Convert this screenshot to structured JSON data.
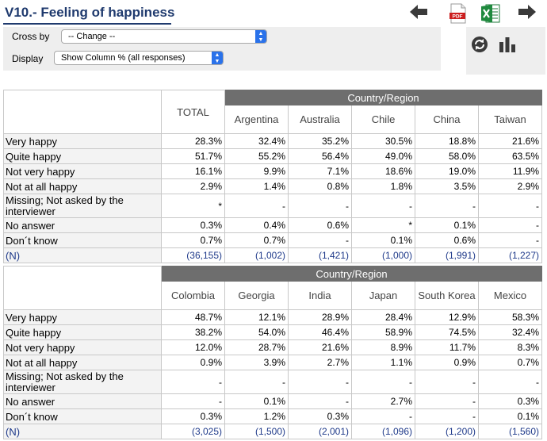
{
  "title": "V10.- Feeling of happiness",
  "controls": {
    "cross_by_label": "Cross by",
    "cross_by_value": "-- Change --",
    "display_label": "Display",
    "display_value": "Show Column % (all responses)"
  },
  "icons": {
    "pdf_text": "PDF"
  },
  "colors": {
    "title": "#1f3a6e",
    "group_header": "#6e6e6e",
    "select_arrow": "#2a72ea",
    "n_row": "#1f3a8a"
  },
  "tables": [
    {
      "total_header": "TOTAL",
      "group_header": "Country/Region",
      "columns": [
        "Argentina",
        "Australia",
        "Chile",
        "China",
        "Taiwan"
      ],
      "rows": [
        {
          "label": "Very happy",
          "values": [
            "28.3%",
            "32.4%",
            "35.2%",
            "30.5%",
            "18.8%",
            "21.6%"
          ]
        },
        {
          "label": "Quite happy",
          "values": [
            "51.7%",
            "55.2%",
            "56.4%",
            "49.0%",
            "58.0%",
            "63.5%"
          ]
        },
        {
          "label": "Not very happy",
          "values": [
            "16.1%",
            "9.9%",
            "7.1%",
            "18.6%",
            "19.0%",
            "11.9%"
          ]
        },
        {
          "label": "Not at all happy",
          "values": [
            "2.9%",
            "1.4%",
            "0.8%",
            "1.8%",
            "3.5%",
            "2.9%"
          ]
        },
        {
          "label": "Missing; Not asked by the interviewer",
          "values": [
            "*",
            "-",
            "-",
            "-",
            "-",
            "-"
          ]
        },
        {
          "label": "No answer",
          "values": [
            "0.3%",
            "0.4%",
            "0.6%",
            "*",
            "0.1%",
            "-"
          ]
        },
        {
          "label": "Don´t know",
          "values": [
            "0.7%",
            "0.7%",
            "-",
            "0.1%",
            "0.6%",
            "-"
          ]
        },
        {
          "label": "(N)",
          "values": [
            "(36,155)",
            "(1,002)",
            "(1,421)",
            "(1,000)",
            "(1,991)",
            "(1,227)"
          ]
        }
      ]
    },
    {
      "total_header": "",
      "group_header": "Country/Region",
      "columns": [
        "Colombia",
        "Georgia",
        "India",
        "Japan",
        "South Korea",
        "Mexico"
      ],
      "rows": [
        {
          "label": "Very happy",
          "values": [
            "48.7%",
            "12.1%",
            "28.9%",
            "28.4%",
            "12.9%",
            "58.3%"
          ]
        },
        {
          "label": "Quite happy",
          "values": [
            "38.2%",
            "54.0%",
            "46.4%",
            "58.9%",
            "74.5%",
            "32.4%"
          ]
        },
        {
          "label": "Not very happy",
          "values": [
            "12.0%",
            "28.7%",
            "21.6%",
            "8.9%",
            "11.7%",
            "8.3%"
          ]
        },
        {
          "label": "Not at all happy",
          "values": [
            "0.9%",
            "3.9%",
            "2.7%",
            "1.1%",
            "0.9%",
            "0.7%"
          ]
        },
        {
          "label": "Missing; Not asked by the interviewer",
          "values": [
            "-",
            "-",
            "-",
            "-",
            "-",
            "-"
          ]
        },
        {
          "label": "No answer",
          "values": [
            "-",
            "0.1%",
            "-",
            "2.7%",
            "-",
            "0.3%"
          ]
        },
        {
          "label": "Don´t know",
          "values": [
            "0.3%",
            "1.2%",
            "0.3%",
            "-",
            "-",
            "0.1%"
          ]
        },
        {
          "label": "(N)",
          "values": [
            "(3,025)",
            "(1,500)",
            "(2,001)",
            "(1,096)",
            "(1,200)",
            "(1,560)"
          ]
        }
      ]
    }
  ]
}
